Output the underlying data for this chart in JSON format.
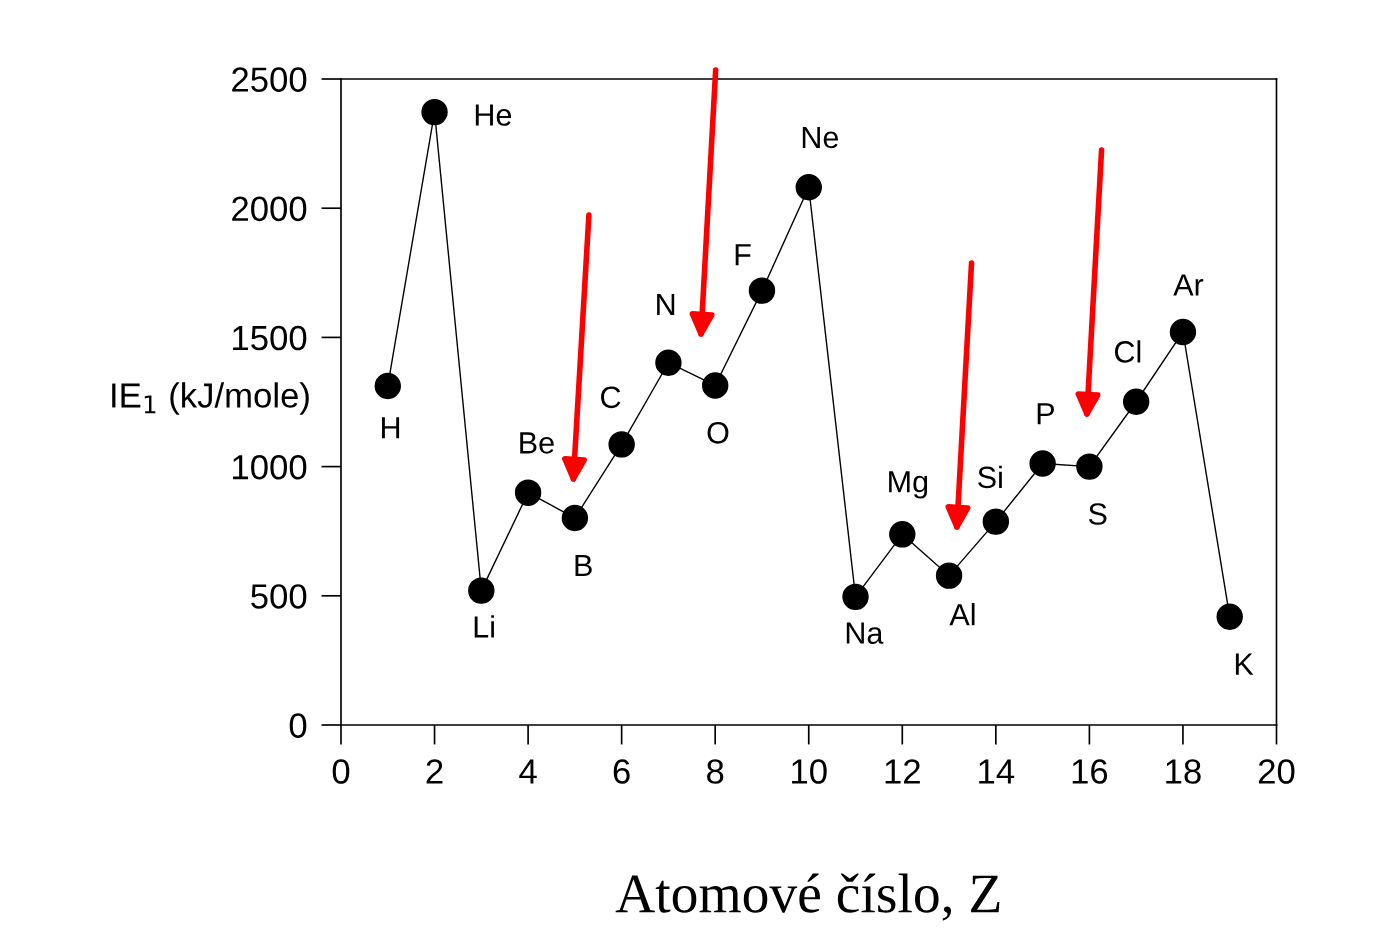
{
  "chart_data": {
    "type": "line",
    "xlabel": "Atomové číslo, Z",
    "ylabel": "IE$_{1}$ (kJ/mole)",
    "x": [
      1,
      2,
      3,
      4,
      5,
      6,
      7,
      8,
      9,
      10,
      11,
      12,
      13,
      14,
      15,
      16,
      17,
      18,
      19
    ],
    "series": [
      {
        "color": "#000000",
        "values": [
          1312,
          2372,
          520,
          899,
          801,
          1086,
          1402,
          1314,
          1681,
          2081,
          496,
          738,
          578,
          787,
          1012,
          1000,
          1251,
          1521,
          419
        ]
      }
    ],
    "xlim": [
      0,
      20
    ],
    "ylim": [
      0,
      2500
    ],
    "xticks": [
      0,
      2,
      4,
      6,
      8,
      10,
      12,
      14,
      16,
      18,
      20
    ],
    "yticks": [
      0,
      500,
      1000,
      1500,
      2000,
      2500
    ],
    "marker": "circle",
    "line_style": "solid",
    "grid": false,
    "legend": false,
    "annotations": [
      {
        "text": "H",
        "x": 1,
        "y": 1312
      },
      {
        "text": "He",
        "x": 2,
        "y": 2372
      },
      {
        "text": "Li",
        "x": 3,
        "y": 520
      },
      {
        "text": "Be",
        "x": 4,
        "y": 899
      },
      {
        "text": "B",
        "x": 5,
        "y": 801
      },
      {
        "text": "C",
        "x": 6,
        "y": 1086
      },
      {
        "text": "N",
        "x": 7,
        "y": 1402
      },
      {
        "text": "O",
        "x": 8,
        "y": 1314
      },
      {
        "text": "F",
        "x": 9,
        "y": 1681
      },
      {
        "text": "Ne",
        "x": 10,
        "y": 2081
      },
      {
        "text": "Na",
        "x": 11,
        "y": 496
      },
      {
        "text": "Mg",
        "x": 12,
        "y": 738
      },
      {
        "text": "Al",
        "x": 13,
        "y": 578
      },
      {
        "text": "Si",
        "x": 14,
        "y": 787
      },
      {
        "text": "P",
        "x": 15,
        "y": 1012
      },
      {
        "text": "S",
        "x": 16,
        "y": 1000
      },
      {
        "text": "Cl",
        "x": 17,
        "y": 1251
      },
      {
        "text": "Ar",
        "x": 18,
        "y": 1521
      },
      {
        "text": "K",
        "x": 19,
        "y": 419
      }
    ]
  }
}
